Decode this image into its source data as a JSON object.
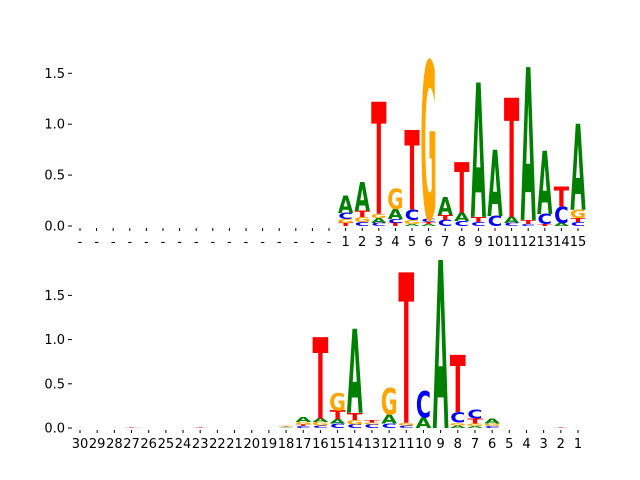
{
  "chart_data": [
    {
      "type": "sequence-logo",
      "alphabet_colors": {
        "A": "#008000",
        "C": "#0000ff",
        "G": "#ffa500",
        "T": "#ff0000"
      },
      "ylim": [
        0,
        1.65
      ],
      "yticks": [
        "0.0",
        "0.5",
        "1.0",
        "1.5"
      ],
      "ytick_values": [
        0,
        0.5,
        1.0,
        1.5
      ],
      "xtick_labels": [
        "-",
        "-",
        "-",
        "-",
        "-",
        "-",
        "-",
        "-",
        "-",
        "-",
        "-",
        "-",
        "-",
        "-",
        "-",
        "-",
        "1",
        "2",
        "3",
        "4",
        "5",
        "6",
        "7",
        "8",
        "9",
        "10",
        "11",
        "12",
        "13",
        "14",
        "15"
      ],
      "columns": [
        [],
        [],
        [],
        [],
        [],
        [],
        [],
        [],
        [],
        [],
        [],
        [],
        [],
        [],
        [],
        [],
        [
          {
            "l": "T",
            "h": 0.03
          },
          {
            "l": "G",
            "h": 0.04
          },
          {
            "l": "C",
            "h": 0.06
          },
          {
            "l": "A",
            "h": 0.17
          }
        ],
        [
          {
            "l": "C",
            "h": 0.04
          },
          {
            "l": "G",
            "h": 0.05
          },
          {
            "l": "T",
            "h": 0.06
          },
          {
            "l": "A",
            "h": 0.28
          }
        ],
        [
          {
            "l": "C",
            "h": 0.03
          },
          {
            "l": "A",
            "h": 0.05
          },
          {
            "l": "G",
            "h": 0.04
          },
          {
            "l": "T",
            "h": 1.1
          }
        ],
        [
          {
            "l": "T",
            "h": 0.03
          },
          {
            "l": "C",
            "h": 0.04
          },
          {
            "l": "A",
            "h": 0.1
          },
          {
            "l": "G",
            "h": 0.2
          }
        ],
        [
          {
            "l": "A",
            "h": 0.02
          },
          {
            "l": "G",
            "h": 0.04
          },
          {
            "l": "C",
            "h": 0.1
          },
          {
            "l": "T",
            "h": 0.78
          }
        ],
        [
          {
            "l": "A",
            "h": 0.02
          },
          {
            "l": "T",
            "h": 0.02
          },
          {
            "l": "C",
            "h": 0.03
          },
          {
            "l": "G",
            "h": 1.55
          }
        ],
        [
          {
            "l": "C",
            "h": 0.06
          },
          {
            "l": "T",
            "h": 0.05
          },
          {
            "l": "A",
            "h": 0.18
          }
        ],
        [
          {
            "l": "C",
            "h": 0.05
          },
          {
            "l": "A",
            "h": 0.08
          },
          {
            "l": "T",
            "h": 0.5
          }
        ],
        [
          {
            "l": "C",
            "h": 0.04
          },
          {
            "l": "T",
            "h": 0.05
          },
          {
            "l": "A",
            "h": 1.32
          }
        ],
        [
          {
            "l": "C",
            "h": 0.1
          },
          {
            "l": "A",
            "h": 0.65
          }
        ],
        [
          {
            "l": "C",
            "h": 0.03
          },
          {
            "l": "A",
            "h": 0.06
          },
          {
            "l": "T",
            "h": 1.17
          }
        ],
        [
          {
            "l": "C",
            "h": 0.02
          },
          {
            "l": "T",
            "h": 0.04
          },
          {
            "l": "A",
            "h": 1.5
          }
        ],
        [
          {
            "l": "T",
            "h": 0.02
          },
          {
            "l": "C",
            "h": 0.1
          },
          {
            "l": "A",
            "h": 0.62
          }
        ],
        [
          {
            "l": "A",
            "h": 0.03
          },
          {
            "l": "C",
            "h": 0.16
          },
          {
            "l": "T",
            "h": 0.2
          }
        ],
        [
          {
            "l": "C",
            "h": 0.04
          },
          {
            "l": "T",
            "h": 0.04
          },
          {
            "l": "G",
            "h": 0.08
          },
          {
            "l": "A",
            "h": 0.84
          }
        ]
      ]
    },
    {
      "type": "sequence-logo",
      "alphabet_colors": {
        "A": "#008000",
        "C": "#0000ff",
        "G": "#ffa500",
        "T": "#ff0000"
      },
      "ylim": [
        0,
        1.9
      ],
      "yticks": [
        "0.0",
        "0.5",
        "1.0",
        "1.5"
      ],
      "ytick_values": [
        0,
        0.5,
        1.0,
        1.5
      ],
      "xtick_labels": [
        "30",
        "29",
        "28",
        "27",
        "26",
        "25",
        "24",
        "23",
        "22",
        "21",
        "20",
        "19",
        "18",
        "17",
        "16",
        "15",
        "14",
        "13",
        "12",
        "11",
        "10",
        "9",
        "8",
        "7",
        "6",
        "5",
        "4",
        "3",
        "2",
        "1"
      ],
      "columns": [
        [],
        [],
        [],
        [
          {
            "l": "T",
            "h": 0.008
          }
        ],
        [],
        [],
        [],
        [
          {
            "l": "T",
            "h": 0.006
          }
        ],
        [],
        [],
        [],
        [],
        [
          {
            "l": "A",
            "h": 0.01
          },
          {
            "l": "T",
            "h": 0.01
          },
          {
            "l": "G",
            "h": 0.01
          }
        ],
        [
          {
            "l": "C",
            "h": 0.02
          },
          {
            "l": "T",
            "h": 0.02
          },
          {
            "l": "G",
            "h": 0.03
          },
          {
            "l": "A",
            "h": 0.06
          }
        ],
        [
          {
            "l": "C",
            "h": 0.03
          },
          {
            "l": "G",
            "h": 0.04
          },
          {
            "l": "A",
            "h": 0.04
          },
          {
            "l": "T",
            "h": 0.92
          }
        ],
        [
          {
            "l": "C",
            "h": 0.05
          },
          {
            "l": "A",
            "h": 0.05
          },
          {
            "l": "T",
            "h": 0.1
          },
          {
            "l": "G",
            "h": 0.2
          }
        ],
        [
          {
            "l": "C",
            "h": 0.04
          },
          {
            "l": "G",
            "h": 0.05
          },
          {
            "l": "T",
            "h": 0.08
          },
          {
            "l": "A",
            "h": 0.95
          }
        ],
        [
          {
            "l": "C",
            "h": 0.04
          },
          {
            "l": "G",
            "h": 0.02
          },
          {
            "l": "T",
            "h": 0.03
          }
        ],
        [
          {
            "l": "C",
            "h": 0.05
          },
          {
            "l": "A",
            "h": 0.1
          },
          {
            "l": "G",
            "h": 0.3
          }
        ],
        [
          {
            "l": "C",
            "h": 0.03
          },
          {
            "l": "G",
            "h": 0.03
          },
          {
            "l": "T",
            "h": 1.7
          }
        ],
        [
          {
            "l": "A",
            "h": 0.12
          },
          {
            "l": "C",
            "h": 0.3
          }
        ],
        [
          {
            "l": "A",
            "h": 1.9
          }
        ],
        [
          {
            "l": "A",
            "h": 0.03
          },
          {
            "l": "G",
            "h": 0.03
          },
          {
            "l": "C",
            "h": 0.12
          },
          {
            "l": "T",
            "h": 0.65
          }
        ],
        [
          {
            "l": "A",
            "h": 0.02
          },
          {
            "l": "G",
            "h": 0.03
          },
          {
            "l": "T",
            "h": 0.06
          },
          {
            "l": "C",
            "h": 0.1
          }
        ],
        [
          {
            "l": "C",
            "h": 0.02
          },
          {
            "l": "G",
            "h": 0.03
          },
          {
            "l": "A",
            "h": 0.06
          }
        ],
        [],
        [],
        [],
        [
          {
            "l": "T",
            "h": 0.008
          }
        ],
        []
      ]
    }
  ]
}
